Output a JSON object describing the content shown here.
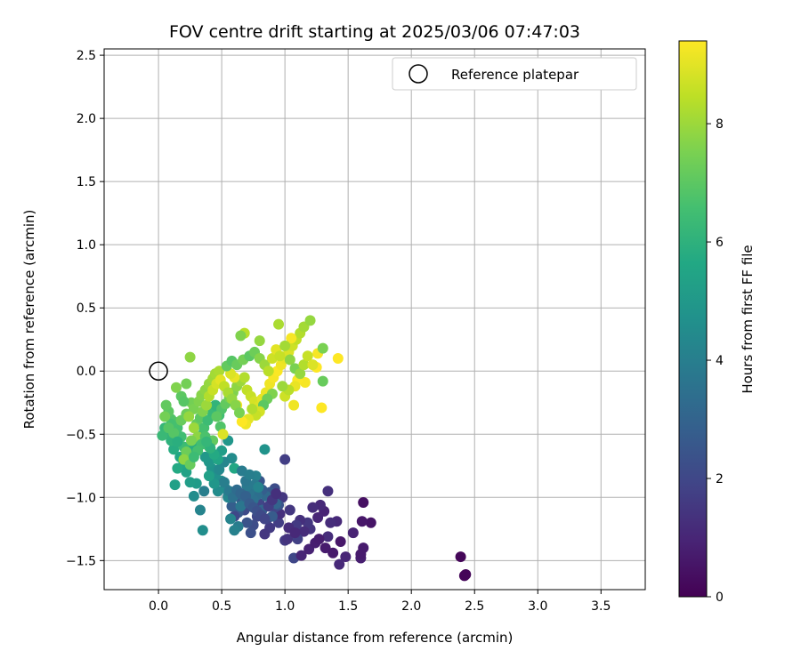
{
  "chart_data": {
    "type": "scatter",
    "title": "FOV centre drift starting at 2025/03/06 07:47:03",
    "xlabel": "Angular distance from reference (arcmin)",
    "ylabel": "Rotation from reference (arcmin)",
    "xlim": [
      -0.43,
      3.85
    ],
    "ylim": [
      -1.73,
      2.55
    ],
    "xticks": [
      0.0,
      0.5,
      1.0,
      1.5,
      2.0,
      2.5,
      3.0,
      3.5
    ],
    "xtick_labels": [
      "0.0",
      "0.5",
      "1.0",
      "1.5",
      "2.0",
      "2.5",
      "3.0",
      "3.5"
    ],
    "yticks": [
      -1.5,
      -1.0,
      -0.5,
      0.0,
      0.5,
      1.0,
      1.5,
      2.0,
      2.5
    ],
    "ytick_labels": [
      "−1.5",
      "−1.0",
      "−0.5",
      "0.0",
      "0.5",
      "1.0",
      "1.5",
      "2.0",
      "2.5"
    ],
    "grid": true,
    "legend": {
      "position": "top-right",
      "entries": [
        "Reference platepar"
      ]
    },
    "reference_point": {
      "x": 0.0,
      "y": 0.0,
      "label": "Reference platepar",
      "marker": "open-circle"
    },
    "colorbar": {
      "label": "Hours from first FF file",
      "range": [
        0,
        9.4
      ],
      "ticks": [
        0,
        2,
        4,
        6,
        8
      ],
      "tick_labels": [
        "0",
        "2",
        "4",
        "6",
        "8"
      ],
      "colormap": "viridis"
    },
    "points": [
      [
        2.42,
        -1.62,
        0.1
      ],
      [
        2.43,
        -1.61,
        0.1
      ],
      [
        2.39,
        -1.47,
        0.15
      ],
      [
        1.62,
        -1.04,
        0.4
      ],
      [
        1.68,
        -1.2,
        0.5
      ],
      [
        1.61,
        -1.19,
        0.6
      ],
      [
        1.62,
        -1.4,
        0.7
      ],
      [
        1.6,
        -1.48,
        0.8
      ],
      [
        1.6,
        -1.45,
        0.7
      ],
      [
        1.54,
        -1.28,
        0.9
      ],
      [
        1.48,
        -1.47,
        1.0
      ],
      [
        1.43,
        -1.53,
        1.1
      ],
      [
        1.41,
        -1.19,
        1.1
      ],
      [
        1.34,
        -1.31,
        1.2
      ],
      [
        1.36,
        -1.2,
        1.2
      ],
      [
        1.34,
        -0.95,
        1.3
      ],
      [
        1.31,
        -1.11,
        0.9
      ],
      [
        1.28,
        -1.06,
        1.1
      ],
      [
        1.26,
        -1.16,
        1.0
      ],
      [
        1.22,
        -1.08,
        1.2
      ],
      [
        1.2,
        -1.25,
        1.4
      ],
      [
        1.18,
        -1.2,
        1.5
      ],
      [
        1.15,
        -1.27,
        1.2
      ],
      [
        1.12,
        -1.18,
        1.3
      ],
      [
        1.09,
        -1.22,
        1.6
      ],
      [
        1.04,
        -1.1,
        1.5
      ],
      [
        1.1,
        -1.33,
        1.8
      ],
      [
        1.07,
        -1.48,
        2.0
      ],
      [
        1.0,
        -1.34,
        1.6
      ],
      [
        1.02,
        -1.33,
        1.4
      ],
      [
        0.95,
        -1.2,
        1.7
      ],
      [
        0.96,
        -1.13,
        1.3
      ],
      [
        0.92,
        -1.08,
        1.9
      ],
      [
        0.88,
        -1.24,
        1.6
      ],
      [
        0.84,
        -1.29,
        1.5
      ],
      [
        0.86,
        -1.17,
        1.8
      ],
      [
        0.8,
        -1.05,
        1.9
      ],
      [
        0.78,
        -1.15,
        2.0
      ],
      [
        0.75,
        -1.22,
        2.2
      ],
      [
        0.73,
        -1.28,
        2.3
      ],
      [
        0.7,
        -1.2,
        2.4
      ],
      [
        0.68,
        -1.1,
        2.1
      ],
      [
        0.66,
        -1.03,
        2.5
      ],
      [
        0.63,
        -1.12,
        2.6
      ],
      [
        0.6,
        -1.15,
        2.0
      ],
      [
        0.58,
        -1.07,
        2.8
      ],
      [
        0.55,
        -0.99,
        3.0
      ],
      [
        1.0,
        -0.7,
        1.7
      ],
      [
        0.98,
        -1.0,
        1.5
      ],
      [
        0.95,
        -1.06,
        2.4
      ],
      [
        0.92,
        -0.93,
        2.2
      ],
      [
        0.88,
        -0.96,
        2.6
      ],
      [
        0.85,
        -0.99,
        3.2
      ],
      [
        0.82,
        -0.94,
        2.8
      ],
      [
        0.8,
        -0.87,
        2.5
      ],
      [
        0.78,
        -0.98,
        3.4
      ],
      [
        0.75,
        -1.02,
        3.5
      ],
      [
        0.72,
        -0.96,
        3.6
      ],
      [
        0.7,
        -0.91,
        3.8
      ],
      [
        0.68,
        -1.0,
        3.3
      ],
      [
        0.65,
        -1.07,
        3.7
      ],
      [
        0.63,
        -1.23,
        3.9
      ],
      [
        0.6,
        -1.26,
        4.1
      ],
      [
        0.57,
        -1.17,
        4.2
      ],
      [
        0.55,
        -1.0,
        4.3
      ],
      [
        0.53,
        -0.93,
        4.4
      ],
      [
        0.5,
        -0.87,
        4.6
      ],
      [
        0.47,
        -0.95,
        4.5
      ],
      [
        0.45,
        -0.82,
        4.7
      ],
      [
        0.42,
        -0.77,
        4.8
      ],
      [
        0.4,
        -0.72,
        4.9
      ],
      [
        0.37,
        -0.68,
        5.0
      ],
      [
        0.36,
        -0.95,
        4.0
      ],
      [
        0.33,
        -1.1,
        4.2
      ],
      [
        0.35,
        -1.26,
        4.6
      ],
      [
        0.28,
        -0.99,
        4.5
      ],
      [
        0.3,
        -0.89,
        5.1
      ],
      [
        0.25,
        -0.88,
        5.2
      ],
      [
        0.22,
        -0.8,
        5.4
      ],
      [
        0.2,
        -0.73,
        5.5
      ],
      [
        0.17,
        -0.68,
        5.6
      ],
      [
        0.13,
        -0.9,
        5.3
      ],
      [
        0.15,
        -0.77,
        5.7
      ],
      [
        0.12,
        -0.62,
        5.8
      ],
      [
        0.1,
        -0.55,
        6.0
      ],
      [
        0.07,
        -0.5,
        6.1
      ],
      [
        0.05,
        -0.45,
        6.2
      ],
      [
        0.03,
        -0.51,
        6.3
      ],
      [
        0.58,
        -0.69,
        4.5
      ],
      [
        0.55,
        -0.55,
        4.9
      ],
      [
        0.52,
        -0.72,
        4.3
      ],
      [
        0.6,
        -0.77,
        5.6
      ],
      [
        0.84,
        -0.62,
        4.8
      ],
      [
        0.77,
        -0.83,
        4.1
      ],
      [
        0.93,
        -1.05,
        3.0
      ],
      [
        0.9,
        -1.15,
        2.7
      ],
      [
        0.82,
        -1.1,
        3.1
      ],
      [
        0.52,
        -0.88,
        4.0
      ],
      [
        0.48,
        -0.78,
        4.4
      ],
      [
        0.44,
        -0.89,
        4.9
      ],
      [
        0.4,
        -0.83,
        5.3
      ],
      [
        0.38,
        -0.58,
        5.6
      ],
      [
        0.35,
        -0.5,
        5.9
      ],
      [
        0.3,
        -0.54,
        6.0
      ],
      [
        0.27,
        -0.6,
        5.8
      ],
      [
        0.24,
        -0.67,
        6.2
      ],
      [
        0.2,
        -0.6,
        6.4
      ],
      [
        0.18,
        -0.52,
        6.5
      ],
      [
        0.15,
        -0.45,
        6.6
      ],
      [
        0.12,
        -0.4,
        6.7
      ],
      [
        0.1,
        -0.38,
        6.8
      ],
      [
        0.08,
        -0.32,
        7.0
      ],
      [
        0.06,
        -0.27,
        7.1
      ],
      [
        0.12,
        -0.49,
        6.9
      ],
      [
        0.18,
        -0.39,
        7.2
      ],
      [
        0.22,
        -0.34,
        7.3
      ],
      [
        0.26,
        -0.25,
        7.4
      ],
      [
        0.28,
        -0.3,
        7.5
      ],
      [
        0.32,
        -0.24,
        7.6
      ],
      [
        0.34,
        -0.19,
        7.7
      ],
      [
        0.37,
        -0.15,
        7.8
      ],
      [
        0.4,
        -0.1,
        7.9
      ],
      [
        0.43,
        -0.06,
        8.0
      ],
      [
        0.45,
        -0.02,
        8.1
      ],
      [
        0.48,
        0.0,
        8.2
      ],
      [
        0.3,
        -0.42,
        7.2
      ],
      [
        0.33,
        -0.37,
        7.0
      ],
      [
        0.36,
        -0.45,
        6.6
      ],
      [
        0.39,
        -0.39,
        6.4
      ],
      [
        0.42,
        -0.32,
        6.3
      ],
      [
        0.45,
        -0.27,
        6.1
      ],
      [
        0.48,
        -0.35,
        6.5
      ],
      [
        0.5,
        -0.3,
        6.8
      ],
      [
        0.53,
        -0.26,
        7.1
      ],
      [
        0.56,
        -0.21,
        7.4
      ],
      [
        0.59,
        -0.17,
        7.6
      ],
      [
        0.62,
        -0.12,
        7.8
      ],
      [
        0.65,
        -0.08,
        8.0
      ],
      [
        0.68,
        -0.05,
        8.3
      ],
      [
        0.7,
        -0.15,
        8.5
      ],
      [
        0.73,
        -0.2,
        8.6
      ],
      [
        0.76,
        -0.24,
        8.8
      ],
      [
        0.79,
        -0.28,
        8.9
      ],
      [
        0.82,
        -0.22,
        9.0
      ],
      [
        0.85,
        -0.17,
        9.1
      ],
      [
        0.88,
        -0.1,
        9.2
      ],
      [
        0.91,
        -0.05,
        9.3
      ],
      [
        0.94,
        0.0,
        9.35
      ],
      [
        0.97,
        0.05,
        9.2
      ],
      [
        1.0,
        0.1,
        9.1
      ],
      [
        1.03,
        0.15,
        8.9
      ],
      [
        1.06,
        0.2,
        8.7
      ],
      [
        1.09,
        0.25,
        8.5
      ],
      [
        1.12,
        0.3,
        8.3
      ],
      [
        1.15,
        0.35,
        8.1
      ],
      [
        1.2,
        0.4,
        7.9
      ],
      [
        0.68,
        0.3,
        8.4
      ],
      [
        0.65,
        0.28,
        7.6
      ],
      [
        0.8,
        0.24,
        7.9
      ],
      [
        0.95,
        0.37,
        8.2
      ],
      [
        1.05,
        0.26,
        9.3
      ],
      [
        1.26,
        0.14,
        9.3
      ],
      [
        1.3,
        0.18,
        7.5
      ],
      [
        1.42,
        0.1,
        9.4
      ],
      [
        1.25,
        0.03,
        9.4
      ],
      [
        1.3,
        -0.08,
        7.2
      ],
      [
        1.29,
        -0.29,
        9.4
      ],
      [
        1.16,
        -0.09,
        9.3
      ],
      [
        1.1,
        -0.07,
        9.35
      ],
      [
        1.08,
        -0.12,
        9.1
      ],
      [
        1.07,
        -0.27,
        9.2
      ],
      [
        1.0,
        -0.2,
        8.7
      ],
      [
        1.03,
        -0.15,
        8.4
      ],
      [
        0.98,
        -0.12,
        8.0
      ],
      [
        0.9,
        -0.18,
        7.6
      ],
      [
        0.86,
        -0.22,
        7.3
      ],
      [
        0.83,
        -0.27,
        7.0
      ],
      [
        0.8,
        -0.32,
        8.8
      ],
      [
        0.77,
        -0.35,
        8.6
      ],
      [
        0.74,
        -0.3,
        8.3
      ],
      [
        0.71,
        -0.38,
        9.0
      ],
      [
        0.69,
        -0.42,
        9.2
      ],
      [
        0.66,
        -0.4,
        9.4
      ],
      [
        0.62,
        -0.27,
        9.3
      ],
      [
        0.6,
        -0.05,
        9.1
      ],
      [
        0.57,
        -0.02,
        8.9
      ],
      [
        0.54,
        0.04,
        7.1
      ],
      [
        0.58,
        0.08,
        6.9
      ],
      [
        0.62,
        0.05,
        7.2
      ],
      [
        0.67,
        0.09,
        7.4
      ],
      [
        0.72,
        0.12,
        7.0
      ],
      [
        0.76,
        0.15,
        7.3
      ],
      [
        0.8,
        0.1,
        7.7
      ],
      [
        0.84,
        0.05,
        8.0
      ],
      [
        0.87,
        0.0,
        8.4
      ],
      [
        0.9,
        0.1,
        8.7
      ],
      [
        0.93,
        0.17,
        9.0
      ],
      [
        0.96,
        0.12,
        8.6
      ],
      [
        1.0,
        0.2,
        8.1
      ],
      [
        1.04,
        0.09,
        7.8
      ],
      [
        1.08,
        0.02,
        7.5
      ],
      [
        1.12,
        -0.02,
        7.9
      ],
      [
        1.15,
        0.05,
        8.3
      ],
      [
        1.18,
        0.12,
        8.6
      ],
      [
        1.22,
        0.05,
        8.9
      ],
      [
        0.25,
        0.11,
        7.8
      ],
      [
        0.22,
        -0.1,
        7.4
      ],
      [
        0.18,
        -0.2,
        7.0
      ],
      [
        0.14,
        -0.13,
        7.6
      ],
      [
        0.2,
        -0.24,
        6.9
      ],
      [
        0.24,
        -0.36,
        7.9
      ],
      [
        0.28,
        -0.45,
        8.0
      ],
      [
        0.31,
        -0.52,
        7.8
      ],
      [
        0.26,
        -0.55,
        7.5
      ],
      [
        0.22,
        -0.64,
        7.3
      ],
      [
        0.2,
        -0.7,
        7.8
      ],
      [
        0.25,
        -0.74,
        7.2
      ],
      [
        0.35,
        -0.32,
        7.6
      ],
      [
        0.38,
        -0.27,
        8.0
      ],
      [
        0.4,
        -0.2,
        8.3
      ],
      [
        0.43,
        -0.15,
        8.6
      ],
      [
        0.46,
        -0.1,
        8.8
      ],
      [
        0.49,
        -0.07,
        9.0
      ],
      [
        0.52,
        -0.12,
        8.5
      ],
      [
        0.55,
        -0.17,
        8.2
      ],
      [
        0.58,
        -0.22,
        7.9
      ],
      [
        0.61,
        -0.27,
        7.7
      ],
      [
        0.64,
        -0.33,
        7.5
      ],
      [
        0.46,
        -0.36,
        7.0
      ],
      [
        0.49,
        -0.44,
        6.8
      ],
      [
        0.51,
        -0.5,
        8.9
      ],
      [
        0.43,
        -0.55,
        7.1
      ],
      [
        0.4,
        -0.6,
        6.9
      ],
      [
        0.37,
        -0.52,
        6.7
      ],
      [
        0.34,
        -0.58,
        6.5
      ],
      [
        0.31,
        -0.63,
        6.6
      ],
      [
        0.28,
        -0.68,
        6.4
      ],
      [
        0.15,
        -0.56,
        5.9
      ],
      [
        0.1,
        -0.42,
        6.6
      ],
      [
        0.05,
        -0.36,
        7.4
      ],
      [
        0.08,
        -0.45,
        6.9
      ],
      [
        0.56,
        -0.95,
        3.8
      ],
      [
        0.59,
        -1.0,
        3.5
      ],
      [
        0.62,
        -0.94,
        3.3
      ],
      [
        0.65,
        -0.97,
        3.1
      ],
      [
        0.69,
        -0.99,
        2.9
      ],
      [
        0.72,
        -1.05,
        2.7
      ],
      [
        0.75,
        -1.08,
        2.5
      ],
      [
        0.78,
        -1.11,
        2.3
      ],
      [
        0.81,
        -1.14,
        2.1
      ],
      [
        0.84,
        -1.17,
        1.9
      ],
      [
        0.87,
        -1.07,
        1.7
      ],
      [
        0.9,
        -1.02,
        1.5
      ],
      [
        0.93,
        -0.97,
        1.3
      ],
      [
        1.03,
        -1.24,
        1.2
      ],
      [
        1.08,
        -1.28,
        1.1
      ],
      [
        1.13,
        -1.46,
        1.0
      ],
      [
        1.19,
        -1.41,
        0.9
      ],
      [
        1.24,
        -1.36,
        0.8
      ],
      [
        1.27,
        -1.33,
        0.75
      ],
      [
        1.32,
        -1.4,
        0.7
      ],
      [
        1.38,
        -1.44,
        0.65
      ],
      [
        1.44,
        -1.35,
        0.6
      ],
      [
        0.66,
        -0.79,
        3.9
      ],
      [
        0.69,
        -0.87,
        3.7
      ],
      [
        0.72,
        -0.82,
        4.0
      ],
      [
        0.76,
        -0.9,
        3.8
      ],
      [
        0.79,
        -0.92,
        4.2
      ],
      [
        0.5,
        -0.63,
        5.2
      ],
      [
        0.47,
        -0.7,
        5.5
      ],
      [
        0.44,
        -0.66,
        5.7
      ],
      [
        0.41,
        -0.61,
        6.0
      ],
      [
        0.38,
        -0.56,
        6.2
      ]
    ]
  }
}
